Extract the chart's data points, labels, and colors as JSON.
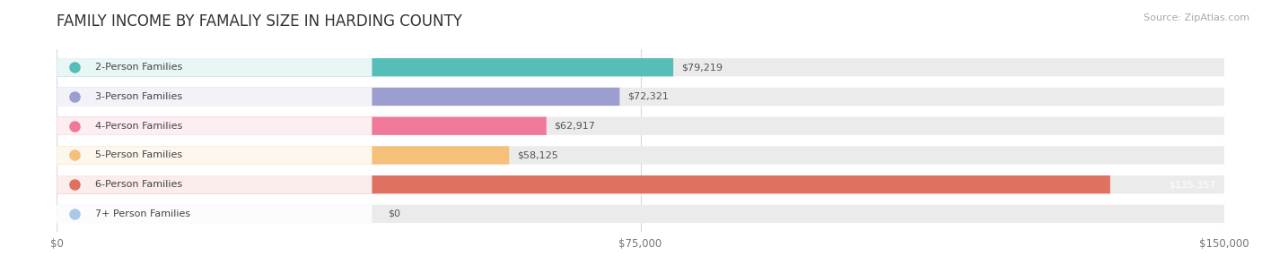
{
  "title": "FAMILY INCOME BY FAMALIY SIZE IN HARDING COUNTY",
  "source": "Source: ZipAtlas.com",
  "categories": [
    "2-Person Families",
    "3-Person Families",
    "4-Person Families",
    "5-Person Families",
    "6-Person Families",
    "7+ Person Families"
  ],
  "values": [
    79219,
    72321,
    62917,
    58125,
    135357,
    0
  ],
  "bar_colors": [
    "#56bdb8",
    "#9b9ece",
    "#f07898",
    "#f5c07a",
    "#e07060",
    "#aac8e8"
  ],
  "xlim": [
    0,
    150000
  ],
  "xticks": [
    0,
    75000,
    150000
  ],
  "xtick_labels": [
    "$0",
    "$75,000",
    "$150,000"
  ],
  "value_labels": [
    "$79,219",
    "$72,321",
    "$62,917",
    "$58,125",
    "$135,357",
    "$0"
  ],
  "title_fontsize": 12,
  "source_fontsize": 8,
  "tick_fontsize": 8.5,
  "bar_label_fontsize": 8,
  "value_fontsize": 8,
  "background_color": "#ffffff",
  "bar_bg_color": "#ebebeb",
  "grid_color": "#d8d8d8"
}
